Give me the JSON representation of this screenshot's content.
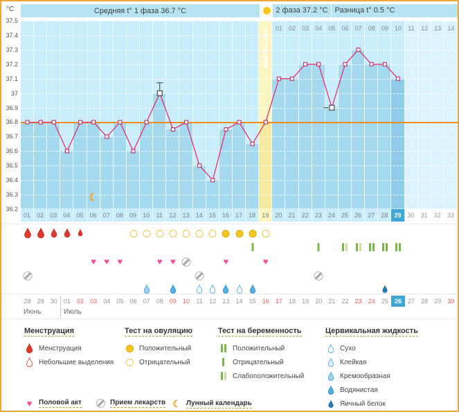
{
  "header": {
    "unit": "°C",
    "avg_phase1": "Средняя t° 1 фаза 36.7 °C",
    "phase2": "2 фаза 37.2 °C",
    "difference": "Разница t° 0.5 °C",
    "ovulation_label": "ОВУЛЯЦИЯ"
  },
  "colors": {
    "temperature_line": "#e23070",
    "marker_stroke": "#c22a60",
    "coverline": "#f28a1e",
    "current_day_highlight": "#3fa7d8",
    "ovulation_column": "#fdf6c3",
    "chart_background": "#c9edfa",
    "bar": "#a5d9f0",
    "page_border": "#f3a33b"
  },
  "chart_data": {
    "type": "line",
    "ylabel": "°C",
    "ylim": [
      36.2,
      37.5
    ],
    "ytick_labels": [
      "37.5",
      "37.4",
      "37.3",
      "37.2",
      "37.1",
      "37",
      "36.9",
      "36.8",
      "36.7",
      "36.6",
      "36.5",
      "36.4",
      "36.3",
      "36.2"
    ],
    "grid": true,
    "total_days": 33,
    "current_day": 29,
    "ovulation_day": 19,
    "coverline_value": 36.8,
    "day_labels": [
      "01",
      "02",
      "03",
      "04",
      "05",
      "06",
      "07",
      "08",
      "09",
      "10",
      "11",
      "12",
      "13",
      "14",
      "15",
      "16",
      "17",
      "18",
      "19",
      "20",
      "21",
      "22",
      "23",
      "24",
      "25",
      "26",
      "27",
      "28",
      "29",
      "30",
      "31",
      "32",
      "33"
    ],
    "phase2_day_labels": [
      "01",
      "02",
      "03",
      "04",
      "05",
      "06",
      "07",
      "08",
      "09",
      "10",
      "11",
      "12",
      "13",
      "14"
    ],
    "temps": [
      36.8,
      36.8,
      36.8,
      36.6,
      36.8,
      36.8,
      36.7,
      36.8,
      36.6,
      36.8,
      37.0,
      36.75,
      36.8,
      36.5,
      36.4,
      36.75,
      36.8,
      36.65,
      36.8,
      37.1,
      37.1,
      37.2,
      37.2,
      36.9,
      37.2,
      37.3,
      37.2,
      37.2,
      37.1
    ],
    "flagged": [
      {
        "day": 11,
        "mark": "pole-up"
      },
      {
        "day": 24,
        "mark": "dash-left"
      }
    ],
    "moon_day": 6
  },
  "icon_rows": {
    "menstruation": [
      {
        "day": 1,
        "type": "heavy"
      },
      {
        "day": 2,
        "type": "heavy"
      },
      {
        "day": 3,
        "type": "normal"
      },
      {
        "day": 4,
        "type": "normal"
      },
      {
        "day": 5,
        "type": "spotting"
      }
    ],
    "ovulation_tests": [
      {
        "day": 9,
        "result": "negative"
      },
      {
        "day": 10,
        "result": "negative"
      },
      {
        "day": 11,
        "result": "negative"
      },
      {
        "day": 12,
        "result": "negative"
      },
      {
        "day": 13,
        "result": "negative"
      },
      {
        "day": 14,
        "result": "negative"
      },
      {
        "day": 15,
        "result": "negative"
      },
      {
        "day": 16,
        "result": "positive"
      },
      {
        "day": 17,
        "result": "positive"
      },
      {
        "day": 18,
        "result": "positive"
      },
      {
        "day": 19,
        "result": "negative"
      }
    ],
    "pregnancy_tests": [
      {
        "day": 18,
        "result": "negative"
      },
      {
        "day": 23,
        "result": "negative"
      },
      {
        "day": 25,
        "result": "weak"
      },
      {
        "day": 26,
        "result": "weak"
      },
      {
        "day": 27,
        "result": "positive"
      },
      {
        "day": 28,
        "result": "positive"
      },
      {
        "day": 29,
        "result": "positive"
      }
    ],
    "intercourse_days": [
      6,
      7,
      8,
      11,
      12,
      16,
      19
    ],
    "medication_days_row1": [
      13
    ],
    "medication_days_row2": [
      1,
      14,
      23
    ],
    "cervical_fluid": [
      {
        "day": 10,
        "type": "creamy"
      },
      {
        "day": 12,
        "type": "watery"
      },
      {
        "day": 14,
        "type": "dry"
      },
      {
        "day": 15,
        "type": "dry"
      },
      {
        "day": 16,
        "type": "watery"
      },
      {
        "day": 17,
        "type": "dry"
      },
      {
        "day": 18,
        "type": "watery"
      },
      {
        "day": 28,
        "type": "eggwhite"
      }
    ]
  },
  "dates": {
    "month1": "Июнь",
    "month2": "Июль",
    "cells": [
      {
        "label": "28"
      },
      {
        "label": "29"
      },
      {
        "label": "30"
      },
      {
        "label": "01"
      },
      {
        "label": "02",
        "red": true
      },
      {
        "label": "03",
        "red": true
      },
      {
        "label": "04"
      },
      {
        "label": "05"
      },
      {
        "label": "06"
      },
      {
        "label": "07"
      },
      {
        "label": "08"
      },
      {
        "label": "09",
        "red": true
      },
      {
        "label": "10",
        "red": true
      },
      {
        "label": "11"
      },
      {
        "label": "12"
      },
      {
        "label": "13"
      },
      {
        "label": "14"
      },
      {
        "label": "15"
      },
      {
        "label": "16",
        "red": true
      },
      {
        "label": "17",
        "red": true
      },
      {
        "label": "18"
      },
      {
        "label": "19"
      },
      {
        "label": "20"
      },
      {
        "label": "21"
      },
      {
        "label": "22"
      },
      {
        "label": "23",
        "red": true
      },
      {
        "label": "24",
        "red": true
      },
      {
        "label": "25"
      },
      {
        "label": "26",
        "current": true
      },
      {
        "label": "27"
      },
      {
        "label": "28"
      },
      {
        "label": "29"
      },
      {
        "label": "30",
        "red": true
      }
    ]
  },
  "legend": {
    "menstruation": {
      "title": "Менструация",
      "items": [
        {
          "label": "Менструация",
          "icon": "drop-filled"
        },
        {
          "label": "Небольшие выделения",
          "icon": "drop-outline"
        }
      ]
    },
    "ovulation_test": {
      "title": "Тест на овуляцию",
      "items": [
        {
          "label": "Положительный",
          "icon": "circle-filled"
        },
        {
          "label": "Отрицательный",
          "icon": "circle-outline"
        }
      ]
    },
    "pregnancy_test": {
      "title": "Тест на беременность",
      "items": [
        {
          "label": "Положительный",
          "icon": "pt-positive"
        },
        {
          "label": "Отрицательный",
          "icon": "pt-negative"
        },
        {
          "label": "Слабоположительный",
          "icon": "pt-weak"
        }
      ]
    },
    "cervical_fluid": {
      "title": "Цервикальная жидкость",
      "items": [
        {
          "label": "Сухо",
          "icon": "cf-dry"
        },
        {
          "label": "Клейкая",
          "icon": "cf-sticky"
        },
        {
          "label": "Кремообразная",
          "icon": "cf-creamy"
        },
        {
          "label": "Водянистая",
          "icon": "cf-watery"
        },
        {
          "label": "Яичный белок",
          "icon": "cf-eggwhite"
        }
      ]
    },
    "extra": [
      {
        "label": "Половой акт",
        "icon": "heart"
      },
      {
        "label": "Прием лекарств",
        "icon": "pill"
      },
      {
        "label": "Лунный календарь",
        "icon": "moon"
      }
    ]
  }
}
